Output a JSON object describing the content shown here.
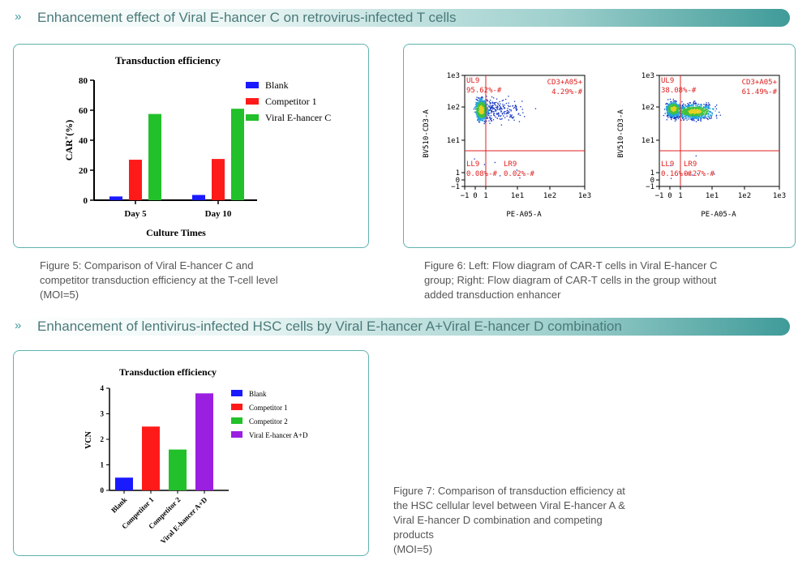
{
  "sections": [
    {
      "title": "Enhancement effect of Viral E-hancer C on retrovirus-infected T cells"
    },
    {
      "title": "Enhancement of lentivirus-infected HSC cells by Viral E-hancer A+Viral E-hancer D combination"
    }
  ],
  "captions": {
    "fig5": [
      "Figure 5: Comparison of Viral E-hancer C and",
      "competitor transduction efficiency at the T-cell level",
      "(MOI=5)"
    ],
    "fig6": [
      "Figure 6: Left: Flow diagram of CAR-T cells in Viral E-hancer C",
      "group; Right: Flow diagram of CAR-T cells in the group without",
      "added transduction enhancer"
    ],
    "fig7": [
      "Figure 7: Comparison of transduction efficiency at",
      "the HSC cellular level between Viral E-hancer A &",
      "Viral E-hancer D combination and competing",
      "products",
      "(MOI=5)"
    ]
  },
  "colors": {
    "blank": "#1a1aff",
    "competitor1": "#ff1a1a",
    "competitor2": "#22c02a",
    "viral": "#9b1fe0",
    "accent": "#3f9b99"
  },
  "chart_data": [
    {
      "type": "bar",
      "title": "Transduction efficiency",
      "xlabel": "Culture Times",
      "ylabel": "CAR+(%)",
      "ylabel_main": "CAR",
      "ylabel_sup": "+",
      "ylabel_suffix": "(%)",
      "categories": [
        "Day 5",
        "Day 10"
      ],
      "series": [
        {
          "name": "Blank",
          "color": "#1a1aff",
          "values": [
            2.5,
            3.5
          ]
        },
        {
          "name": "Competitor 1",
          "color": "#ff1a1a",
          "values": [
            27,
            27.5
          ]
        },
        {
          "name": "Viral E-hancer C",
          "color": "#22c02a",
          "values": [
            57.5,
            61
          ]
        }
      ],
      "ylim": [
        0,
        80
      ],
      "yticks": [
        0,
        20,
        40,
        60,
        80
      ],
      "legend": "right"
    },
    {
      "type": "scatter",
      "xlabel": "PE-A05-A",
      "ylabel": "BV510-CD3-A",
      "xticks": [
        "−1",
        "0",
        "1",
        "1e1",
        "1e2",
        "1e3"
      ],
      "yticks": [
        "1e3",
        "1e2",
        "1e1",
        "1",
        "0",
        "−1"
      ],
      "quadrants": {
        "UL": "UL9",
        "UL_value": "95.62%-#",
        "UR": "CD3+A05+",
        "UR_value": "4.29%-#",
        "LL": "LL9",
        "LL_value": "0.08%-#",
        "LR": "LR9",
        "LR_value": "0.02%-#"
      }
    },
    {
      "type": "scatter",
      "xlabel": "PE-A05-A",
      "ylabel": "BV510-CD3-A",
      "xticks": [
        "−1",
        "0",
        "1",
        "1e1",
        "1e2",
        "1e3"
      ],
      "yticks": [
        "1e3",
        "1e2",
        "1e1",
        "1",
        "0",
        "−1"
      ],
      "quadrants": {
        "UL": "UL9",
        "UL_value": "38.08%-#",
        "UR": "CD3+A05+",
        "UR_value": "61.49%-#",
        "LL": "LL9",
        "LL_value": "0.16%-#",
        "LR": "LR9",
        "LR_value": "0.27%-#"
      }
    },
    {
      "type": "bar",
      "title": "Transduction efficiency",
      "ylabel": "VCN",
      "categories": [
        "Blank",
        "Competitor 1",
        "Competitor 2",
        "Viral E-hancer A+D"
      ],
      "values": [
        0.5,
        2.5,
        1.6,
        3.8
      ],
      "colors": [
        "#1a1aff",
        "#ff1a1a",
        "#22c02a",
        "#9b1fe0"
      ],
      "ylim": [
        0,
        4
      ],
      "yticks": [
        0,
        1,
        2,
        3,
        4
      ],
      "legend": "right"
    }
  ]
}
